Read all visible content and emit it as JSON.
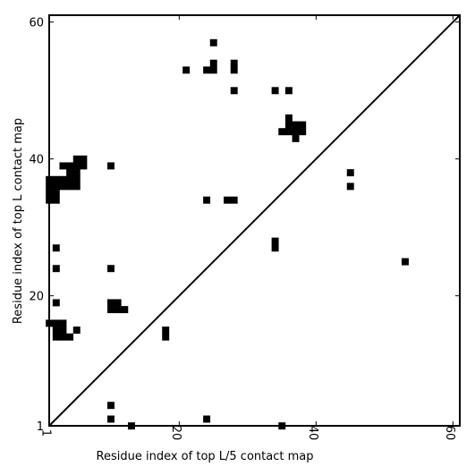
{
  "chart_data": {
    "type": "heatmap",
    "title": "",
    "xlabel": "Residue index of top L/5 contact map",
    "ylabel": "Residue index of top L contact map",
    "xlim": [
      1,
      61
    ],
    "ylim": [
      1,
      61
    ],
    "x_ticks": [
      1,
      20,
      40,
      60
    ],
    "y_ticks": [
      1,
      20,
      40,
      60
    ],
    "x_tick_labels": [
      "1",
      "20",
      "40",
      "60"
    ],
    "y_tick_labels": [
      "1",
      "20",
      "40",
      "60"
    ],
    "diagonal": true,
    "grid": false,
    "cell_color": "#000000",
    "contacts": [
      [
        21,
        53
      ],
      [
        24,
        53
      ],
      [
        25,
        53
      ],
      [
        25,
        54
      ],
      [
        25,
        57
      ],
      [
        28,
        53
      ],
      [
        28,
        54
      ],
      [
        28,
        50
      ],
      [
        34,
        50
      ],
      [
        36,
        50
      ],
      [
        36,
        46
      ],
      [
        36,
        45
      ],
      [
        36,
        44
      ],
      [
        37,
        45
      ],
      [
        37,
        44
      ],
      [
        38,
        45
      ],
      [
        38,
        44
      ],
      [
        35,
        44
      ],
      [
        37,
        43
      ],
      [
        45,
        38
      ],
      [
        45,
        36
      ],
      [
        24,
        34
      ],
      [
        27,
        34
      ],
      [
        28,
        34
      ],
      [
        34,
        28
      ],
      [
        34,
        27
      ],
      [
        53,
        25
      ],
      [
        1,
        37
      ],
      [
        2,
        37
      ],
      [
        3,
        37
      ],
      [
        4,
        37
      ],
      [
        1,
        36
      ],
      [
        2,
        36
      ],
      [
        3,
        36
      ],
      [
        4,
        36
      ],
      [
        5,
        36
      ],
      [
        1,
        35
      ],
      [
        2,
        35
      ],
      [
        1,
        34
      ],
      [
        2,
        34
      ],
      [
        3,
        39
      ],
      [
        4,
        39
      ],
      [
        5,
        39
      ],
      [
        6,
        39
      ],
      [
        4,
        38
      ],
      [
        5,
        38
      ],
      [
        5,
        40
      ],
      [
        6,
        40
      ],
      [
        5,
        37
      ],
      [
        10,
        39
      ],
      [
        2,
        27
      ],
      [
        2,
        24
      ],
      [
        2,
        19
      ],
      [
        10,
        24
      ],
      [
        10,
        19
      ],
      [
        11,
        19
      ],
      [
        10,
        18
      ],
      [
        11,
        18
      ],
      [
        12,
        18
      ],
      [
        1,
        16
      ],
      [
        2,
        16
      ],
      [
        3,
        16
      ],
      [
        2,
        15
      ],
      [
        3,
        15
      ],
      [
        5,
        15
      ],
      [
        2,
        14
      ],
      [
        3,
        14
      ],
      [
        4,
        14
      ],
      [
        18,
        15
      ],
      [
        18,
        14
      ],
      [
        10,
        4
      ],
      [
        10,
        2
      ],
      [
        13,
        1
      ],
      [
        24,
        2
      ],
      [
        35,
        1
      ]
    ]
  }
}
